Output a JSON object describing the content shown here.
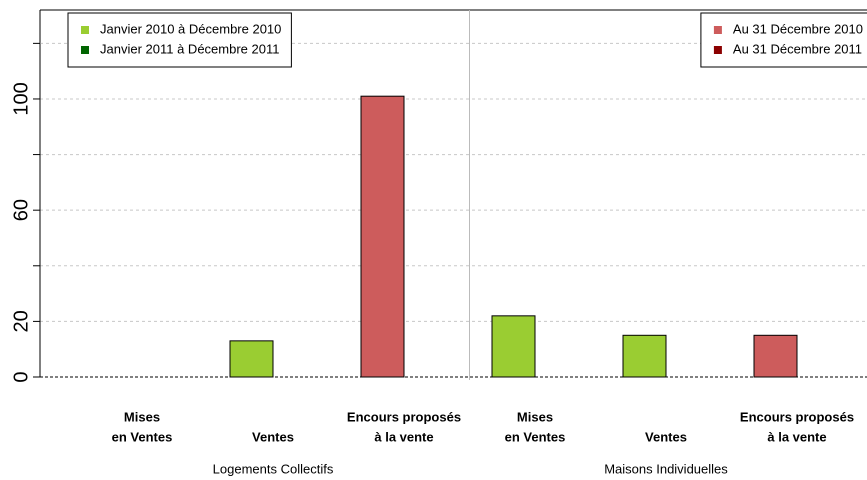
{
  "chart_data": {
    "type": "bar",
    "ylim": [
      0,
      132
    ],
    "yticks": [
      0,
      20,
      60,
      100
    ],
    "minor_ticks": [
      40,
      80,
      120
    ],
    "grid": true,
    "categories": [
      [
        "Mises",
        "en Ventes"
      ],
      [
        "Ventes"
      ],
      [
        "Encours proposés",
        "à la vente"
      ],
      [
        "Mises",
        "en Ventes"
      ],
      [
        "Ventes"
      ],
      [
        "Encours proposés",
        "à la vente"
      ]
    ],
    "groups": [
      "Logements Collectifs",
      "Maisons Individuelles"
    ],
    "series": [
      {
        "name": "Janvier 2010 à Décembre 2010",
        "color": "#9acd32",
        "legend": "topleft",
        "values": [
          0,
          13,
          null,
          22,
          15,
          null
        ]
      },
      {
        "name": "Janvier 2011 à Décembre 2011",
        "color": "#006400",
        "legend": "topleft",
        "values": [
          0,
          0,
          null,
          0,
          0,
          null
        ]
      },
      {
        "name": "Au 31 Décembre 2010",
        "color": "#cd5c5c",
        "legend": "topright",
        "values": [
          null,
          null,
          101,
          null,
          null,
          15
        ]
      },
      {
        "name": "Au 31 Décembre 2011",
        "color": "#8b0000",
        "legend": "topright",
        "values": [
          null,
          null,
          0,
          null,
          null,
          0
        ]
      }
    ]
  }
}
